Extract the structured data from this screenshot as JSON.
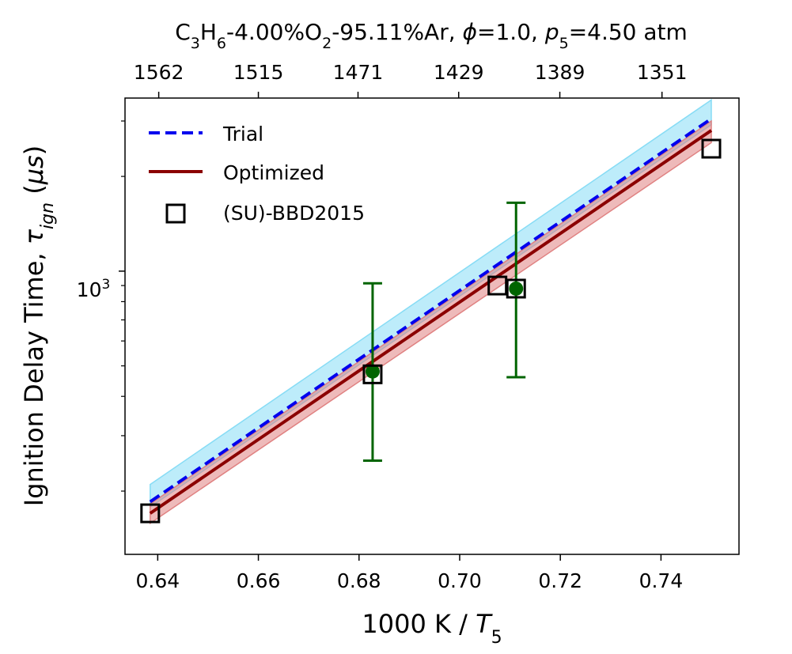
{
  "chart_data": {
    "type": "line",
    "title_top": {
      "base": "C",
      "sub1": "3",
      "mid1": "H",
      "sub2": "6",
      "mid2": "-4.00%O",
      "sub3": "2",
      "mid3": "-95.11%Ar, ",
      "phi": "ϕ",
      "mid4": "=1.0, ",
      "p": "p",
      "sub4": "5",
      "end": "=4.50 atm"
    },
    "xlabel": {
      "text": "1000 K / ",
      "var": "T",
      "sub": "5"
    },
    "ylabel": {
      "text": "Ignition Delay Time, ",
      "var": "τ",
      "sub": "ign",
      "unit_open": " (",
      "unit_var": "μs",
      "unit_close": ")"
    },
    "x_range": [
      0.6335,
      0.7555
    ],
    "y_log_range": [
      2.1,
      3.55
    ],
    "y_scale": "log",
    "x_ticks": [
      "0.64",
      "0.66",
      "0.68",
      "0.70",
      "0.72",
      "0.74"
    ],
    "x_tick_values": [
      0.64,
      0.66,
      0.68,
      0.7,
      0.72,
      0.74
    ],
    "y_tick_major": {
      "value": 1000,
      "base": "10",
      "exp": "3"
    },
    "y_minor_ticks": [
      200,
      300,
      400,
      500,
      600,
      700,
      800,
      900,
      2000,
      3000
    ],
    "top_ticks": [
      "1562",
      "1515",
      "1471",
      "1429",
      "1389",
      "1351"
    ],
    "top_tick_values": [
      0.6402,
      0.66,
      0.6798,
      0.6998,
      0.7199,
      0.7402
    ],
    "series": [
      {
        "name": "Trial",
        "style": "dashed",
        "color": "#0000ee",
        "x": [
          0.6385,
          0.75
        ],
        "y": [
          185,
          3050
        ]
      },
      {
        "name": "Optimized",
        "style": "solid",
        "color": "#8b0000",
        "x": [
          0.6385,
          0.75
        ],
        "y": [
          170,
          2800
        ]
      }
    ],
    "bands": [
      {
        "for": "Trial",
        "color": "#87dcf5",
        "x": [
          0.6385,
          0.75
        ],
        "lower": [
          178,
          2920
        ],
        "upper": [
          210,
          3500
        ]
      },
      {
        "for": "Optimized",
        "color": "#e08282",
        "x": [
          0.6385,
          0.75
        ],
        "lower": [
          158,
          2560
        ],
        "upper": [
          182,
          3000
        ]
      }
    ],
    "markers": {
      "name": "(SU)-BBD2015",
      "x": [
        0.6385,
        0.6827,
        0.7075,
        0.7112,
        0.75
      ],
      "y": [
        170,
        470,
        900,
        880,
        2450
      ]
    },
    "errorbars": {
      "color": "#006400",
      "points": [
        {
          "x": 0.6827,
          "y": 480,
          "low": 250,
          "high": 915
        },
        {
          "x": 0.7112,
          "y": 880,
          "low": 460,
          "high": 1650
        }
      ]
    },
    "legend_position": "upper-left"
  }
}
